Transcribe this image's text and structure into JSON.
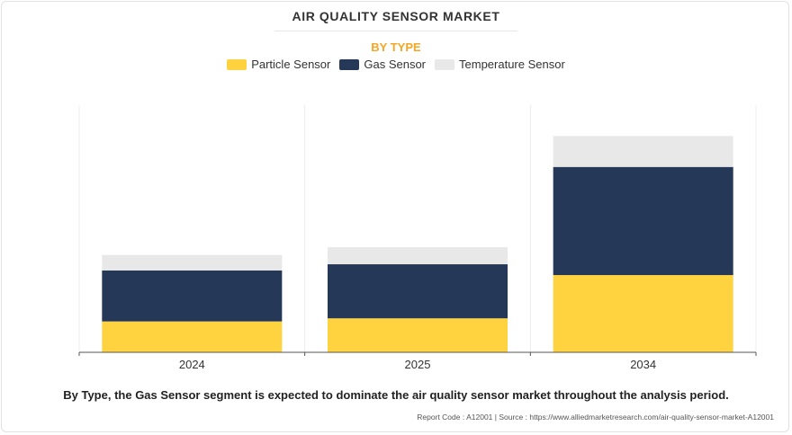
{
  "header": {
    "title": "AIR QUALITY SENSOR MARKET",
    "subtitle": "BY TYPE"
  },
  "chart_data": {
    "type": "bar",
    "stacked": true,
    "categories": [
      "2024",
      "2025",
      "2034"
    ],
    "series": [
      {
        "name": "Particle Sensor",
        "color": "#FFD23F",
        "values": [
          1.0,
          1.1,
          2.5
        ]
      },
      {
        "name": "Gas Sensor",
        "color": "#253858",
        "values": [
          1.65,
          1.75,
          3.5
        ]
      },
      {
        "name": "Temperature Sensor",
        "color": "#E8E8E8",
        "values": [
          0.5,
          0.55,
          1.0
        ]
      }
    ],
    "ylim": [
      0,
      8
    ],
    "grid": false,
    "legend_position": "top-center",
    "xlabel": "",
    "ylabel": ""
  },
  "footer": {
    "caption": "By Type, the Gas Sensor segment is expected to dominate the air quality sensor market throughout the analysis period.",
    "source": "Report Code : A12001  |  Source : https://www.alliedmarketresearch.com/air-quality-sensor-market-A12001"
  }
}
